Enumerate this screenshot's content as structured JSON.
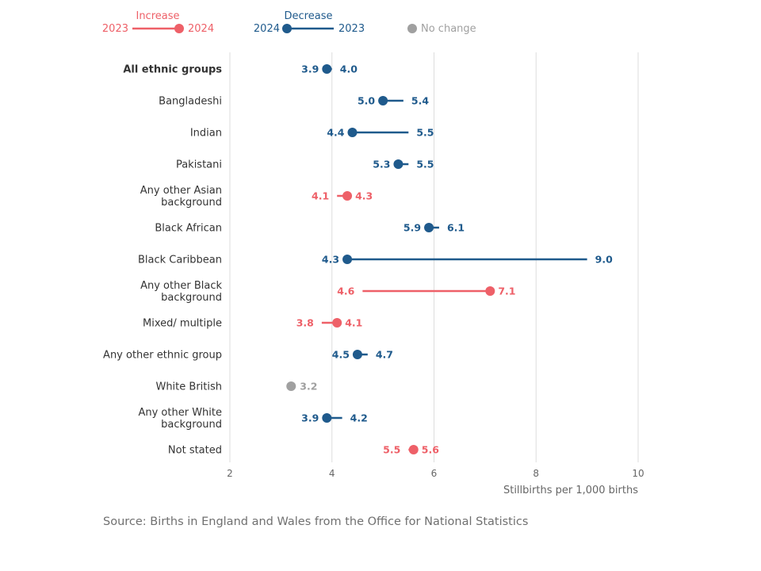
{
  "chart_data": {
    "type": "dumbbell",
    "xlabel": "Stillbirths per 1,000 births",
    "xlim": [
      2,
      10
    ],
    "xticks": [
      2,
      4,
      6,
      8,
      10
    ],
    "grid": true,
    "legend_position": "top-left",
    "legend": {
      "increase": {
        "title": "Increase",
        "from": "2023",
        "to": "2024"
      },
      "decrease": {
        "title": "Decrease",
        "from": "2024",
        "to": "2023"
      },
      "no_change": "No change"
    },
    "colors": {
      "increase": "#ee6068",
      "decrease": "#1f5a8c",
      "no_change": "#a0a0a0"
    },
    "series_labels": [
      "2023",
      "2024"
    ],
    "rows": [
      {
        "category": [
          "All ethnic groups"
        ],
        "y2023": 4.0,
        "y2024": 3.9,
        "bold": true
      },
      {
        "category": [
          "Bangladeshi"
        ],
        "y2023": 5.4,
        "y2024": 5.0
      },
      {
        "category": [
          "Indian"
        ],
        "y2023": 5.5,
        "y2024": 4.4
      },
      {
        "category": [
          "Pakistani"
        ],
        "y2023": 5.5,
        "y2024": 5.3
      },
      {
        "category": [
          "Any other Asian",
          "background"
        ],
        "y2023": 4.1,
        "y2024": 4.3
      },
      {
        "category": [
          "Black African"
        ],
        "y2023": 6.1,
        "y2024": 5.9
      },
      {
        "category": [
          "Black Caribbean"
        ],
        "y2023": 9.0,
        "y2024": 4.3
      },
      {
        "category": [
          "Any other Black",
          "background"
        ],
        "y2023": 4.6,
        "y2024": 7.1
      },
      {
        "category": [
          "Mixed/ multiple"
        ],
        "y2023": 3.8,
        "y2024": 4.1
      },
      {
        "category": [
          "Any other ethnic group"
        ],
        "y2023": 4.7,
        "y2024": 4.5
      },
      {
        "category": [
          "White British"
        ],
        "y2023": 3.2,
        "y2024": 3.2
      },
      {
        "category": [
          "Any other White",
          "background"
        ],
        "y2023": 4.2,
        "y2024": 3.9
      },
      {
        "category": [
          "Not stated"
        ],
        "y2023": 5.5,
        "y2024": 5.6
      }
    ]
  },
  "source": "Source: Births in England and Wales from the Office for National Statistics"
}
